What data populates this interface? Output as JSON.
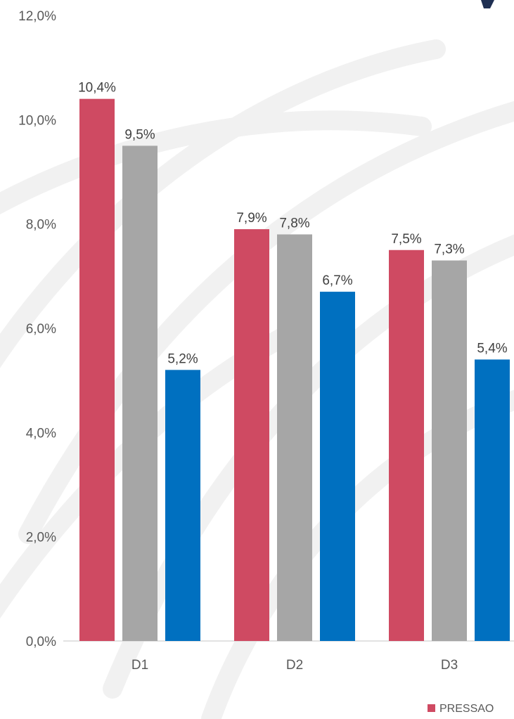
{
  "chart_data": {
    "type": "bar",
    "categories": [
      "D1",
      "D2",
      "D3"
    ],
    "series": [
      {
        "name": "PRESSAO",
        "color": "#cf4a62",
        "values": [
          10.4,
          7.9,
          7.5
        ],
        "labels": [
          "10,4%",
          "7,9%",
          "7,5%"
        ]
      },
      {
        "color": "#a6a6a6",
        "values": [
          9.5,
          7.8,
          7.3
        ],
        "labels": [
          "9,5%",
          "7,8%",
          "7,3%"
        ]
      },
      {
        "color": "#0070c0",
        "values": [
          5.2,
          6.7,
          5.4
        ],
        "labels": [
          "5,2%",
          "6,7%",
          "5,4%"
        ]
      }
    ],
    "ylim": [
      0,
      12
    ],
    "yticks": [
      0,
      2,
      4,
      6,
      8,
      10,
      12
    ],
    "ytick_labels": [
      "0,0%",
      "2,0%",
      "4,0%",
      "6,0%",
      "8,0%",
      "10,0%",
      "12,0%"
    ],
    "grid": false,
    "legend": "bottom-right",
    "axis_color": "#d9d9d9",
    "background_motif_color": "#f1f1f1",
    "corner_mark_color": "#1f2f52"
  }
}
